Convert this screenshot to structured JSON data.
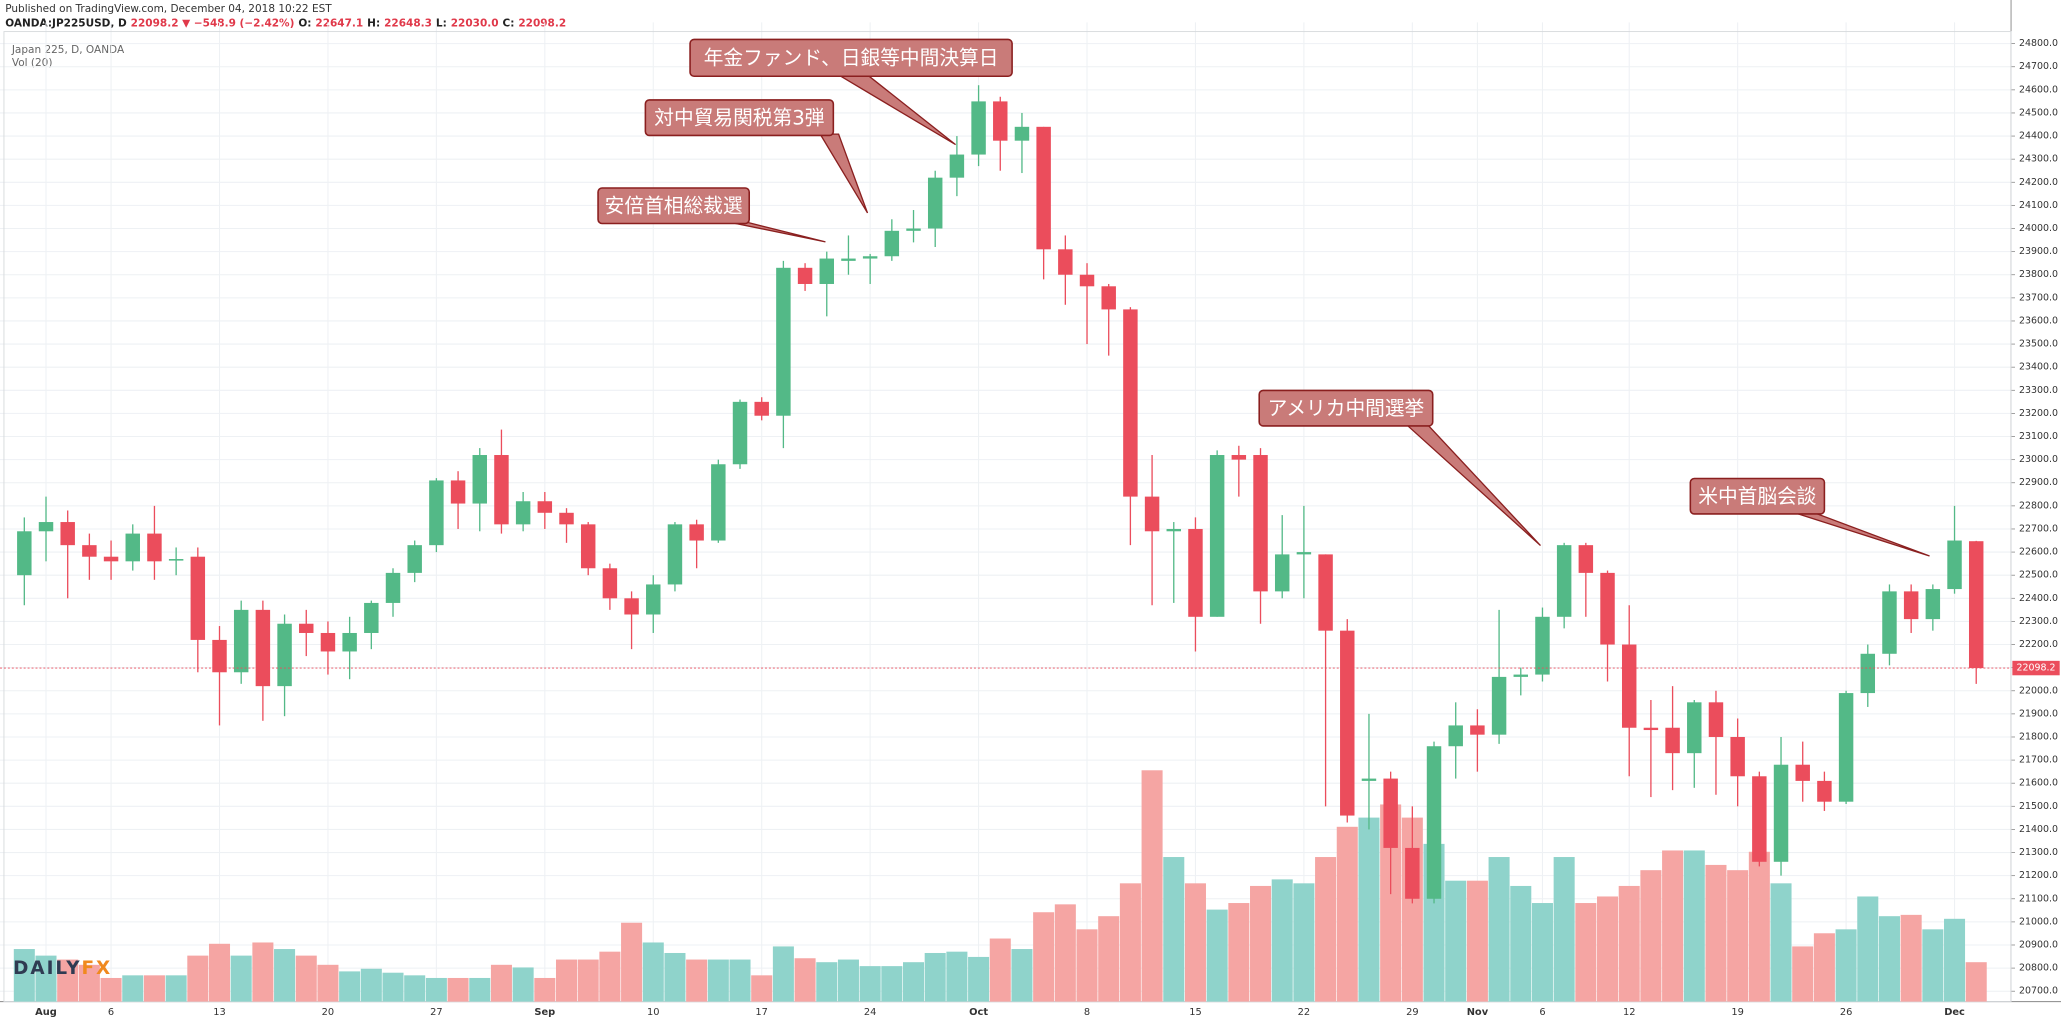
{
  "header": {
    "published": "Published on TradingView.com, December 04, 2018 10:22 EST",
    "quote": [
      "OANDA:JP225USD, D",
      "22098.2 ▼ −548.9 (−2.42%)",
      "O:",
      "22647.1",
      "H:",
      "22648.3",
      "L:",
      "22030.0",
      "C:",
      "22098.2"
    ]
  },
  "legend": {
    "symbol": "Japan 225, D, OANDA",
    "volume": "Vol (20)"
  },
  "logo": [
    "DAILY",
    "FX"
  ],
  "chart_data": {
    "type": "candlestick",
    "categories": [
      null,
      "Aug",
      null,
      null,
      "6",
      null,
      null,
      null,
      null,
      "13",
      null,
      null,
      null,
      null,
      "20",
      null,
      null,
      null,
      null,
      "27",
      null,
      null,
      null,
      null,
      "Sep",
      null,
      null,
      null,
      null,
      "10",
      null,
      null,
      null,
      null,
      "17",
      null,
      null,
      null,
      null,
      "24",
      null,
      null,
      null,
      null,
      "Oct",
      null,
      null,
      null,
      null,
      "8",
      null,
      null,
      null,
      null,
      "15",
      null,
      null,
      null,
      null,
      "22",
      null,
      null,
      null,
      null,
      "29",
      null,
      null,
      "Nov",
      null,
      null,
      "6",
      null,
      null,
      null,
      "12",
      null,
      null,
      null,
      null,
      "19",
      null,
      null,
      null,
      null,
      "26",
      null,
      null,
      null,
      null,
      "Dec",
      null
    ],
    "open": [
      22500,
      22690,
      22730,
      22630,
      22580,
      22560,
      22680,
      22570,
      22580,
      22220,
      22080,
      22350,
      22020,
      22290,
      22250,
      22170,
      22250,
      22380,
      22510,
      22630,
      22910,
      22810,
      23020,
      22720,
      22820,
      22770,
      22720,
      22530,
      22400,
      22330,
      22460,
      22720,
      22650,
      22980,
      23250,
      23190,
      23830,
      23760,
      23860,
      23870,
      23880,
      23990,
      24000,
      24220,
      24320,
      24550,
      24380,
      24440,
      23910,
      23800,
      23750,
      23650,
      22840,
      22690,
      22700,
      22320,
      23020,
      23020,
      22430,
      22590,
      22590,
      22260,
      21610,
      21620,
      21320,
      21100,
      21760,
      21850,
      21810,
      22060,
      22070,
      22320,
      22630,
      22510,
      22200,
      21840,
      21840,
      21730,
      21950,
      21800,
      21630,
      21260,
      21680,
      21610,
      21520,
      21990,
      22160,
      22430,
      22310,
      22440,
      22647.1
    ],
    "high": [
      22750,
      22840,
      22780,
      22680,
      22650,
      22720,
      22800,
      22620,
      22620,
      22280,
      22390,
      22390,
      22330,
      22350,
      22300,
      22320,
      22390,
      22530,
      22650,
      22920,
      22950,
      23050,
      23130,
      22860,
      22860,
      22790,
      22730,
      22550,
      22430,
      22500,
      22730,
      22740,
      23000,
      23260,
      23270,
      23860,
      23850,
      23900,
      23970,
      23890,
      24040,
      24080,
      24250,
      24400,
      24620,
      24570,
      24500,
      24440,
      23970,
      23850,
      23760,
      23660,
      23020,
      22730,
      22750,
      23040,
      23060,
      23050,
      22760,
      22800,
      22590,
      22310,
      21900,
      21650,
      21500,
      21780,
      21950,
      21920,
      22350,
      22100,
      22360,
      22640,
      22640,
      22520,
      22370,
      21960,
      22020,
      21960,
      22000,
      21880,
      21650,
      21800,
      21780,
      21650,
      22000,
      22200,
      22460,
      22460,
      22460,
      22800,
      22648.3
    ],
    "low": [
      22370,
      22560,
      22400,
      22480,
      22480,
      22520,
      22480,
      22500,
      22080,
      21850,
      22030,
      21870,
      21890,
      22150,
      22070,
      22050,
      22180,
      22320,
      22470,
      22600,
      22700,
      22690,
      22680,
      22690,
      22700,
      22640,
      22500,
      22350,
      22180,
      22250,
      22430,
      22530,
      22640,
      22960,
      23170,
      23050,
      23730,
      23620,
      23800,
      23760,
      23860,
      23940,
      23920,
      24140,
      24270,
      24250,
      24240,
      23780,
      23670,
      23500,
      23450,
      22630,
      22370,
      22380,
      22170,
      22320,
      22840,
      22290,
      22400,
      22400,
      21500,
      21430,
      21400,
      21120,
      21080,
      21080,
      21620,
      21650,
      21770,
      21980,
      22040,
      22270,
      22320,
      22040,
      21630,
      21540,
      21570,
      21580,
      21550,
      21500,
      21240,
      21200,
      21520,
      21480,
      21510,
      21930,
      22110,
      22250,
      22260,
      22420,
      22030
    ],
    "close": [
      22690,
      22730,
      22630,
      22580,
      22560,
      22680,
      22560,
      22570,
      22220,
      22080,
      22350,
      22020,
      22290,
      22250,
      22170,
      22250,
      22380,
      22510,
      22630,
      22910,
      22810,
      23020,
      22720,
      22820,
      22770,
      22720,
      22530,
      22400,
      22330,
      22460,
      22720,
      22650,
      22980,
      23250,
      23190,
      23830,
      23760,
      23870,
      23870,
      23880,
      23990,
      24000,
      24220,
      24320,
      24550,
      24380,
      24440,
      23910,
      23800,
      23750,
      23650,
      22840,
      22690,
      22700,
      22320,
      23020,
      23000,
      22430,
      22590,
      22600,
      22260,
      21460,
      21620,
      21320,
      21100,
      21760,
      21850,
      21810,
      22060,
      22070,
      22320,
      22630,
      22510,
      22200,
      21840,
      21830,
      21730,
      21950,
      21800,
      21630,
      21260,
      21680,
      21610,
      21520,
      21990,
      22160,
      22430,
      22310,
      22440,
      22650,
      22098.2
    ],
    "volume": [
      40,
      35,
      32,
      28,
      18,
      20,
      20,
      20,
      35,
      44,
      35,
      45,
      40,
      35,
      28,
      23,
      25,
      22,
      20,
      18,
      18,
      18,
      28,
      26,
      18,
      32,
      32,
      38,
      60,
      45,
      37,
      32,
      32,
      32,
      20,
      42,
      33,
      30,
      32,
      27,
      27,
      30,
      37,
      38,
      34,
      48,
      40,
      68,
      74,
      55,
      65,
      90,
      176,
      110,
      90,
      70,
      75,
      88,
      93,
      90,
      110,
      133,
      140,
      150,
      140,
      120,
      92,
      92,
      110,
      88,
      75,
      110,
      75,
      80,
      88,
      100,
      115,
      115,
      104,
      100,
      114,
      90,
      42,
      52,
      55,
      80,
      65,
      66,
      55,
      63,
      30
    ],
    "vlim": [
      0,
      735
    ],
    "ylim": [
      20655,
      24835
    ],
    "yticks": [
      {
        "value": 20700,
        "label": "20700.0"
      },
      {
        "value": 20800,
        "label": "20800.0"
      },
      {
        "value": 20900,
        "label": "20900.0"
      },
      {
        "value": 21000,
        "label": "21000.0"
      },
      {
        "value": 21100,
        "label": "21100.0"
      },
      {
        "value": 21200,
        "label": "21200.0"
      },
      {
        "value": 21300,
        "label": "21300.0"
      },
      {
        "value": 21400,
        "label": "21400.0"
      },
      {
        "value": 21500,
        "label": "21500.0"
      },
      {
        "value": 21600,
        "label": "21600.0"
      },
      {
        "value": 21700,
        "label": "21700.0"
      },
      {
        "value": 21800,
        "label": "21800.0"
      },
      {
        "value": 21900,
        "label": "21900.0"
      },
      {
        "value": 22000,
        "label": "22000.0"
      },
      {
        "value": 22100,
        "label": "22100.0"
      },
      {
        "value": 22200,
        "label": "22200.0"
      },
      {
        "value": 22300,
        "label": "22300.0"
      },
      {
        "value": 22400,
        "label": "22400.0"
      },
      {
        "value": 22500,
        "label": "22500.0"
      },
      {
        "value": 22600,
        "label": "22600.0"
      },
      {
        "value": 22700,
        "label": "22700.0"
      },
      {
        "value": 22800,
        "label": "22800.0"
      },
      {
        "value": 22900,
        "label": "22900.0"
      },
      {
        "value": 23000,
        "label": "23000.0"
      },
      {
        "value": 23100,
        "label": "23100.0"
      },
      {
        "value": 23200,
        "label": "23200.0"
      },
      {
        "value": 23300,
        "label": "23300.0"
      },
      {
        "value": 23400,
        "label": "23400.0"
      },
      {
        "value": 23500,
        "label": "23500.0"
      },
      {
        "value": 23600,
        "label": "23600.0"
      },
      {
        "value": 23700,
        "label": "23700.0"
      },
      {
        "value": 23800,
        "label": "23800.0"
      },
      {
        "value": 23900,
        "label": "23900.0"
      },
      {
        "value": 24000,
        "label": "24000.0"
      },
      {
        "value": 24100,
        "label": "24100.0"
      },
      {
        "value": 24200,
        "label": "24200.0"
      },
      {
        "value": 24300,
        "label": "24300.0"
      },
      {
        "value": 24400,
        "label": "24400.0"
      },
      {
        "value": 24500,
        "label": "24500.0"
      },
      {
        "value": 24600,
        "label": "24600.0"
      },
      {
        "value": 24700,
        "label": "24700.0"
      },
      {
        "value": 24800,
        "label": "24800.0"
      }
    ],
    "last_price": 22098.2,
    "grid": true,
    "colors": {
      "up": "#53b987",
      "down": "#eb4d5c",
      "vol_up": "#8fd3cb",
      "vol_down": "#f5a5a3",
      "annotation": "#c97b79"
    },
    "annotations": [
      "年金ファンド、日銀等中間決算日",
      "対中貿易関税第3弾",
      "安倍首相総裁選",
      "アメリカ中間選挙",
      "米中首脳会談"
    ]
  }
}
